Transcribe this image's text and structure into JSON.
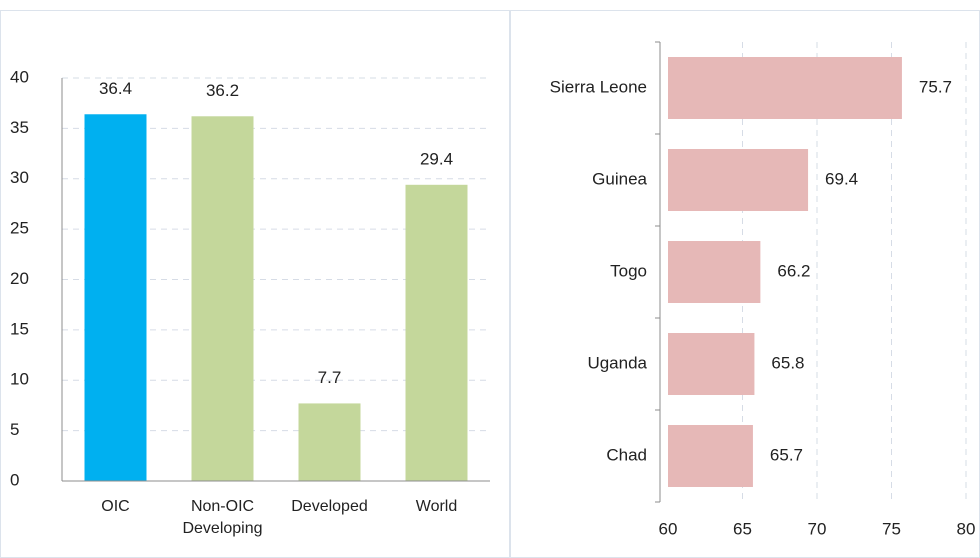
{
  "chart_data": [
    {
      "type": "bar",
      "categories": [
        "OIC",
        "Non-OIC Developing",
        "Developed",
        "World"
      ],
      "values": [
        36.4,
        36.2,
        7.7,
        29.4
      ],
      "colors": [
        "#00b0f0",
        "#c4d79b",
        "#c4d79b",
        "#c4d79b"
      ],
      "ylim": [
        0,
        40
      ],
      "yticks": [
        0,
        5,
        10,
        15,
        20,
        25,
        30,
        35,
        40
      ],
      "grid": true
    },
    {
      "type": "barh",
      "categories": [
        "Sierra Leone",
        "Guinea",
        "Togo",
        "Uganda",
        "Chad"
      ],
      "values": [
        75.7,
        69.4,
        66.2,
        65.8,
        65.7
      ],
      "color": "#e6b8b7",
      "xlim": [
        60,
        80
      ],
      "xticks": [
        60,
        65,
        70,
        75,
        80
      ],
      "grid": true
    }
  ]
}
